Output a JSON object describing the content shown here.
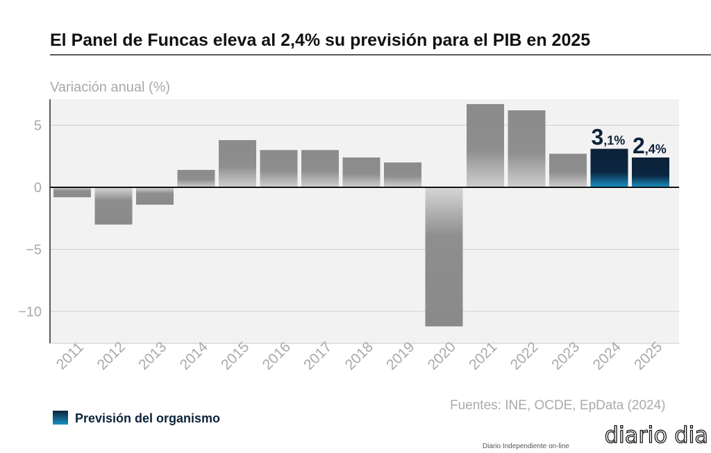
{
  "chart_data": {
    "type": "bar",
    "title": "El Panel de Funcas eleva al 2,4% su previsión para el PIB en 2025",
    "ylabel": "Variación anual (%)",
    "xlabel": "",
    "ylim": [
      -12.8,
      7.2
    ],
    "yticks": [
      5,
      0,
      -5,
      -10
    ],
    "ytick_labels": [
      "5",
      "0",
      "−5",
      "−10"
    ],
    "grid": true,
    "categories": [
      "2011",
      "2012",
      "2013",
      "2014",
      "2015",
      "2016",
      "2017",
      "2018",
      "2019",
      "2020",
      "2021",
      "2022",
      "2023",
      "2024",
      "2025"
    ],
    "values": [
      -0.8,
      -3.0,
      -1.4,
      1.4,
      3.8,
      3.0,
      3.0,
      2.4,
      2.0,
      -11.2,
      6.7,
      6.2,
      2.7,
      3.1,
      2.4
    ],
    "forecast": [
      false,
      false,
      false,
      false,
      false,
      false,
      false,
      false,
      false,
      false,
      false,
      false,
      false,
      true,
      true
    ],
    "data_labels": {
      "2024": {
        "big": "3",
        "small": ",1%"
      },
      "2025": {
        "big": "2",
        "small": ",4%"
      }
    },
    "legend": {
      "label": "Previsión del organismo",
      "placement": "bottom-left"
    },
    "source": "Fuentes: INE, OCDE, EpData (2024)",
    "colors": {
      "bar": "#8c8c8c",
      "forecast": "#0b2238",
      "forecast_glow": "#1a8fc4",
      "plot_bg": "#f2f2f3",
      "label": "#0b2238",
      "axis_text": "#a9a9a9"
    }
  },
  "watermark": {
    "logo": "diario dia",
    "tagline": "Diario Independiente on-line"
  }
}
